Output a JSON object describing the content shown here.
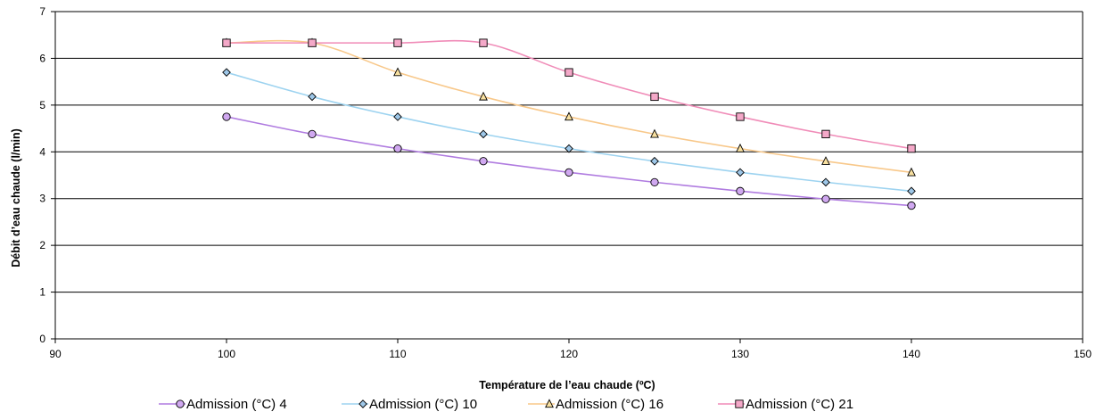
{
  "chart_data": {
    "type": "line",
    "title": "",
    "xlabel": "Température de l’eau chaude (ºC)",
    "ylabel": "Débit d’eau chaude (l/min)",
    "xlim": [
      90,
      150
    ],
    "ylim": [
      0,
      7
    ],
    "xticks": [
      90,
      100,
      110,
      120,
      130,
      140,
      150
    ],
    "yticks": [
      0,
      1,
      2,
      3,
      4,
      5,
      6,
      7
    ],
    "grid": "horizontal",
    "legend_position": "bottom",
    "x": [
      100,
      105,
      110,
      115,
      120,
      125,
      130,
      135,
      140
    ],
    "series": [
      {
        "name": "Admission (°C) 4",
        "color": "#b07ce0",
        "marker": "circle",
        "marker_fill": "#d0a8f0",
        "values": [
          4.75,
          4.38,
          4.07,
          3.8,
          3.56,
          3.35,
          3.16,
          2.99,
          2.85
        ]
      },
      {
        "name": "Admission (°C) 10",
        "color": "#9dd3f0",
        "marker": "diamond",
        "marker_fill": "#9ec7e8",
        "values": [
          5.7,
          5.18,
          4.75,
          4.38,
          4.07,
          3.8,
          3.56,
          3.35,
          3.16
        ]
      },
      {
        "name": "Admission (°C) 16",
        "color": "#f8c88a",
        "marker": "triangle",
        "marker_fill": "#f8e0a0",
        "values": [
          6.33,
          6.33,
          5.7,
          5.18,
          4.75,
          4.38,
          4.07,
          3.8,
          3.56
        ]
      },
      {
        "name": "Admission (°C) 21",
        "color": "#f08cb8",
        "marker": "square",
        "marker_fill": "#f4a8c8",
        "values": [
          6.33,
          6.33,
          6.33,
          6.33,
          5.7,
          5.18,
          4.75,
          4.38,
          4.07
        ]
      }
    ]
  }
}
